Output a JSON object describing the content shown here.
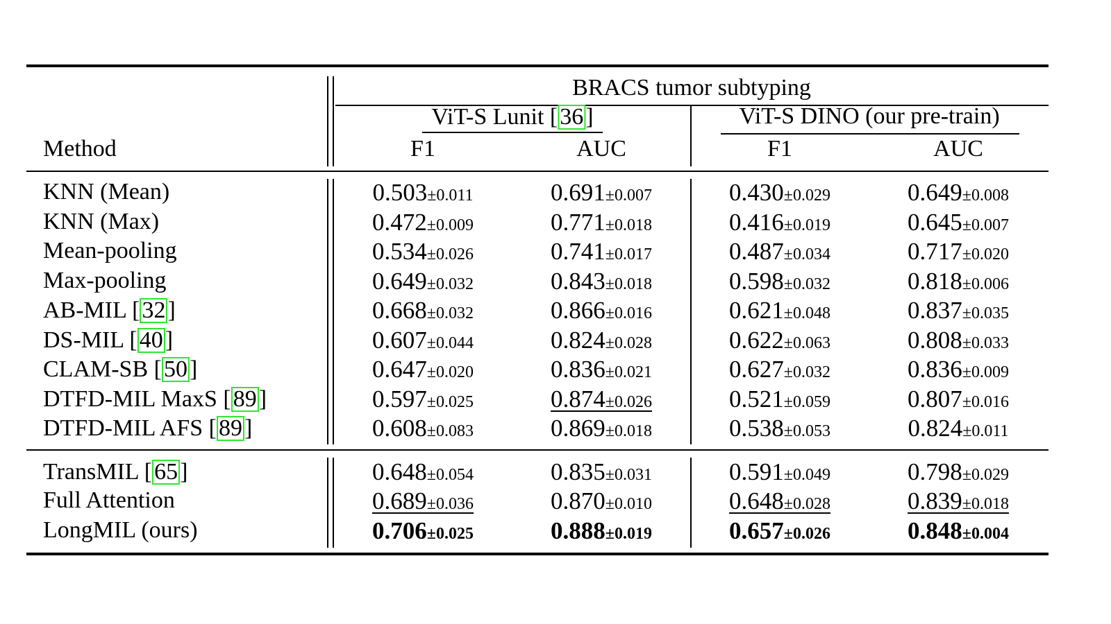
{
  "table": {
    "top_header": "BRACS tumor subtyping",
    "method_header": "Method",
    "groups": [
      {
        "label_prefix": "ViT-S Lunit [",
        "citation": "36",
        "label_suffix": "]"
      },
      {
        "label_prefix": "ViT-S DINO (our pre-train)",
        "citation": "",
        "label_suffix": ""
      }
    ],
    "metric_headers": [
      "F1",
      "AUC",
      "F1",
      "AUC"
    ],
    "rows": [
      {
        "method": "KNN (Mean)",
        "cite": "",
        "cells": [
          [
            "0.503",
            "±0.011"
          ],
          [
            "0.691",
            "±0.007"
          ],
          [
            "0.430",
            "±0.029"
          ],
          [
            "0.649",
            "±0.008"
          ]
        ],
        "bold": [
          false,
          false,
          false,
          false
        ],
        "underline": [
          false,
          false,
          false,
          false
        ]
      },
      {
        "method": "KNN (Max)",
        "cite": "",
        "cells": [
          [
            "0.472",
            "±0.009"
          ],
          [
            "0.771",
            "±0.018"
          ],
          [
            "0.416",
            "±0.019"
          ],
          [
            "0.645",
            "±0.007"
          ]
        ],
        "bold": [
          false,
          false,
          false,
          false
        ],
        "underline": [
          false,
          false,
          false,
          false
        ]
      },
      {
        "method": "Mean-pooling",
        "cite": "",
        "cells": [
          [
            "0.534",
            "±0.026"
          ],
          [
            "0.741",
            "±0.017"
          ],
          [
            "0.487",
            "±0.034"
          ],
          [
            "0.717",
            "±0.020"
          ]
        ],
        "bold": [
          false,
          false,
          false,
          false
        ],
        "underline": [
          false,
          false,
          false,
          false
        ]
      },
      {
        "method": "Max-pooling",
        "cite": "",
        "cells": [
          [
            "0.649",
            "±0.032"
          ],
          [
            "0.843",
            "±0.018"
          ],
          [
            "0.598",
            "±0.032"
          ],
          [
            "0.818",
            "±0.006"
          ]
        ],
        "bold": [
          false,
          false,
          false,
          false
        ],
        "underline": [
          false,
          false,
          false,
          false
        ]
      },
      {
        "method": "AB-MIL",
        "cite": "32",
        "cells": [
          [
            "0.668",
            "±0.032"
          ],
          [
            "0.866",
            "±0.016"
          ],
          [
            "0.621",
            "±0.048"
          ],
          [
            "0.837",
            "±0.035"
          ]
        ],
        "bold": [
          false,
          false,
          false,
          false
        ],
        "underline": [
          false,
          false,
          false,
          false
        ]
      },
      {
        "method": "DS-MIL",
        "cite": "40",
        "cells": [
          [
            "0.607",
            "±0.044"
          ],
          [
            "0.824",
            "±0.028"
          ],
          [
            "0.622",
            "±0.063"
          ],
          [
            "0.808",
            "±0.033"
          ]
        ],
        "bold": [
          false,
          false,
          false,
          false
        ],
        "underline": [
          false,
          false,
          false,
          false
        ]
      },
      {
        "method": "CLAM-SB",
        "cite": "50",
        "cells": [
          [
            "0.647",
            "±0.020"
          ],
          [
            "0.836",
            "±0.021"
          ],
          [
            "0.627",
            "±0.032"
          ],
          [
            "0.836",
            "±0.009"
          ]
        ],
        "bold": [
          false,
          false,
          false,
          false
        ],
        "underline": [
          false,
          false,
          false,
          false
        ]
      },
      {
        "method": "DTFD-MIL MaxS",
        "cite": "89",
        "cells": [
          [
            "0.597",
            "±0.025"
          ],
          [
            "0.874",
            "±0.026"
          ],
          [
            "0.521",
            "±0.059"
          ],
          [
            "0.807",
            "±0.016"
          ]
        ],
        "bold": [
          false,
          false,
          false,
          false
        ],
        "underline": [
          false,
          true,
          false,
          false
        ]
      },
      {
        "method": "DTFD-MIL AFS",
        "cite": "89",
        "cells": [
          [
            "0.608",
            "±0.083"
          ],
          [
            "0.869",
            "±0.018"
          ],
          [
            "0.538",
            "±0.053"
          ],
          [
            "0.824",
            "±0.011"
          ]
        ],
        "bold": [
          false,
          false,
          false,
          false
        ],
        "underline": [
          false,
          false,
          false,
          false
        ]
      },
      {
        "method": "TransMIL",
        "cite": "65",
        "cells": [
          [
            "0.648",
            "±0.054"
          ],
          [
            "0.835",
            "±0.031"
          ],
          [
            "0.591",
            "±0.049"
          ],
          [
            "0.798",
            "±0.029"
          ]
        ],
        "bold": [
          false,
          false,
          false,
          false
        ],
        "underline": [
          false,
          false,
          false,
          false
        ]
      },
      {
        "method": "Full Attention",
        "cite": "",
        "cells": [
          [
            "0.689",
            "±0.036"
          ],
          [
            "0.870",
            "±0.010"
          ],
          [
            "0.648",
            "±0.028"
          ],
          [
            "0.839",
            "±0.018"
          ]
        ],
        "bold": [
          false,
          false,
          false,
          false
        ],
        "underline": [
          true,
          false,
          true,
          true
        ]
      },
      {
        "method": "LongMIL (ours)",
        "cite": "",
        "cells": [
          [
            "0.706",
            "±0.025"
          ],
          [
            "0.888",
            "±0.019"
          ],
          [
            "0.657",
            "±0.026"
          ],
          [
            "0.848",
            "±0.004"
          ]
        ],
        "bold": [
          true,
          true,
          true,
          true
        ],
        "underline": [
          false,
          false,
          false,
          false
        ]
      }
    ]
  }
}
